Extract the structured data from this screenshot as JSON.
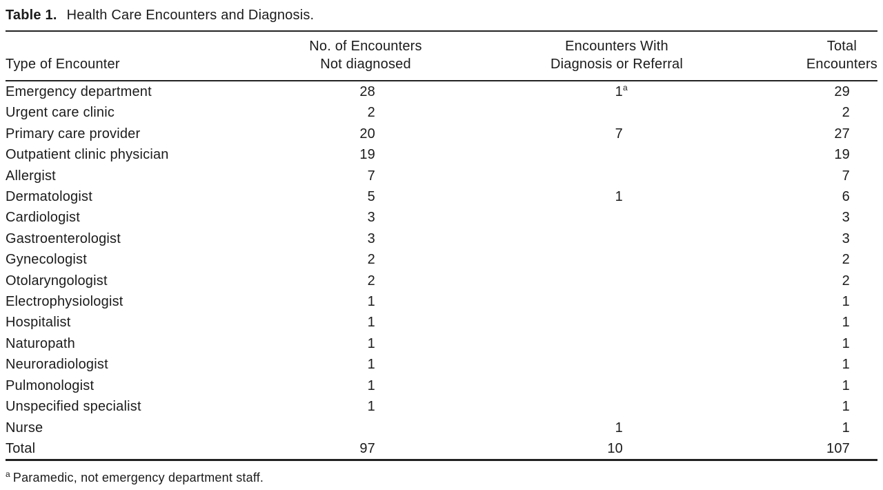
{
  "table": {
    "label": "Table 1.",
    "title": "Health Care Encounters and Diagnosis.",
    "columns": {
      "col1": "Type of Encounter",
      "col2": [
        "No. of Encounters",
        "Not diagnosed"
      ],
      "col3": [
        "Encounters With",
        "Diagnosis or Referral"
      ],
      "col4": [
        "Total",
        "Encounters"
      ]
    },
    "rows": [
      {
        "type": "Emergency department",
        "not_diagnosed": "28",
        "diagnosis_or_referral": "1",
        "diagnosis_footnote": "a",
        "total": "29"
      },
      {
        "type": "Urgent care clinic",
        "not_diagnosed": "2",
        "diagnosis_or_referral": "",
        "diagnosis_footnote": "",
        "total": "2"
      },
      {
        "type": "Primary care provider",
        "not_diagnosed": "20",
        "diagnosis_or_referral": "7",
        "diagnosis_footnote": "",
        "total": "27"
      },
      {
        "type": "Outpatient clinic physician",
        "not_diagnosed": "19",
        "diagnosis_or_referral": "",
        "diagnosis_footnote": "",
        "total": "19"
      },
      {
        "type": "Allergist",
        "not_diagnosed": "7",
        "diagnosis_or_referral": "",
        "diagnosis_footnote": "",
        "total": "7"
      },
      {
        "type": "Dermatologist",
        "not_diagnosed": "5",
        "diagnosis_or_referral": "1",
        "diagnosis_footnote": "",
        "total": "6"
      },
      {
        "type": "Cardiologist",
        "not_diagnosed": "3",
        "diagnosis_or_referral": "",
        "diagnosis_footnote": "",
        "total": "3"
      },
      {
        "type": "Gastroenterologist",
        "not_diagnosed": "3",
        "diagnosis_or_referral": "",
        "diagnosis_footnote": "",
        "total": "3"
      },
      {
        "type": "Gynecologist",
        "not_diagnosed": "2",
        "diagnosis_or_referral": "",
        "diagnosis_footnote": "",
        "total": "2"
      },
      {
        "type": "Otolaryngologist",
        "not_diagnosed": "2",
        "diagnosis_or_referral": "",
        "diagnosis_footnote": "",
        "total": "2"
      },
      {
        "type": "Electrophysiologist",
        "not_diagnosed": "1",
        "diagnosis_or_referral": "",
        "diagnosis_footnote": "",
        "total": "1"
      },
      {
        "type": "Hospitalist",
        "not_diagnosed": "1",
        "diagnosis_or_referral": "",
        "diagnosis_footnote": "",
        "total": "1"
      },
      {
        "type": "Naturopath",
        "not_diagnosed": "1",
        "diagnosis_or_referral": "",
        "diagnosis_footnote": "",
        "total": "1"
      },
      {
        "type": "Neuroradiologist",
        "not_diagnosed": "1",
        "diagnosis_or_referral": "",
        "diagnosis_footnote": "",
        "total": "1"
      },
      {
        "type": "Pulmonologist",
        "not_diagnosed": "1",
        "diagnosis_or_referral": "",
        "diagnosis_footnote": "",
        "total": "1"
      },
      {
        "type": "Unspecified specialist",
        "not_diagnosed": "1",
        "diagnosis_or_referral": "",
        "diagnosis_footnote": "",
        "total": "1"
      },
      {
        "type": "Nurse",
        "not_diagnosed": "",
        "diagnosis_or_referral": "1",
        "diagnosis_footnote": "",
        "total": "1"
      },
      {
        "type": "Total",
        "not_diagnosed": "97",
        "diagnosis_or_referral": "10",
        "diagnosis_footnote": "",
        "total": "107"
      }
    ],
    "footnote": {
      "marker": "a",
      "text": "Paramedic, not emergency department staff."
    }
  }
}
